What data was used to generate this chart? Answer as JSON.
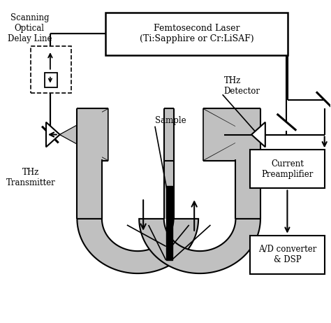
{
  "background": "#ffffff",
  "gray_fill": "#c0c0c0",
  "laser_label": "Femtosecond Laser\n(Ti:Sapphire or Cr:LiSAF)",
  "delay_label": "Scanning\nOptical\nDelay Line",
  "thz_tx_label": "THz\nTransmitter",
  "thz_det_label": "THz\nDetector",
  "sample_label": "Sample",
  "preamp_label": "Current\nPreamplifier",
  "adc_label": "A/D converter\n& DSP",
  "lw": 1.5,
  "fontsize_main": 9.0,
  "fontsize_small": 8.5
}
